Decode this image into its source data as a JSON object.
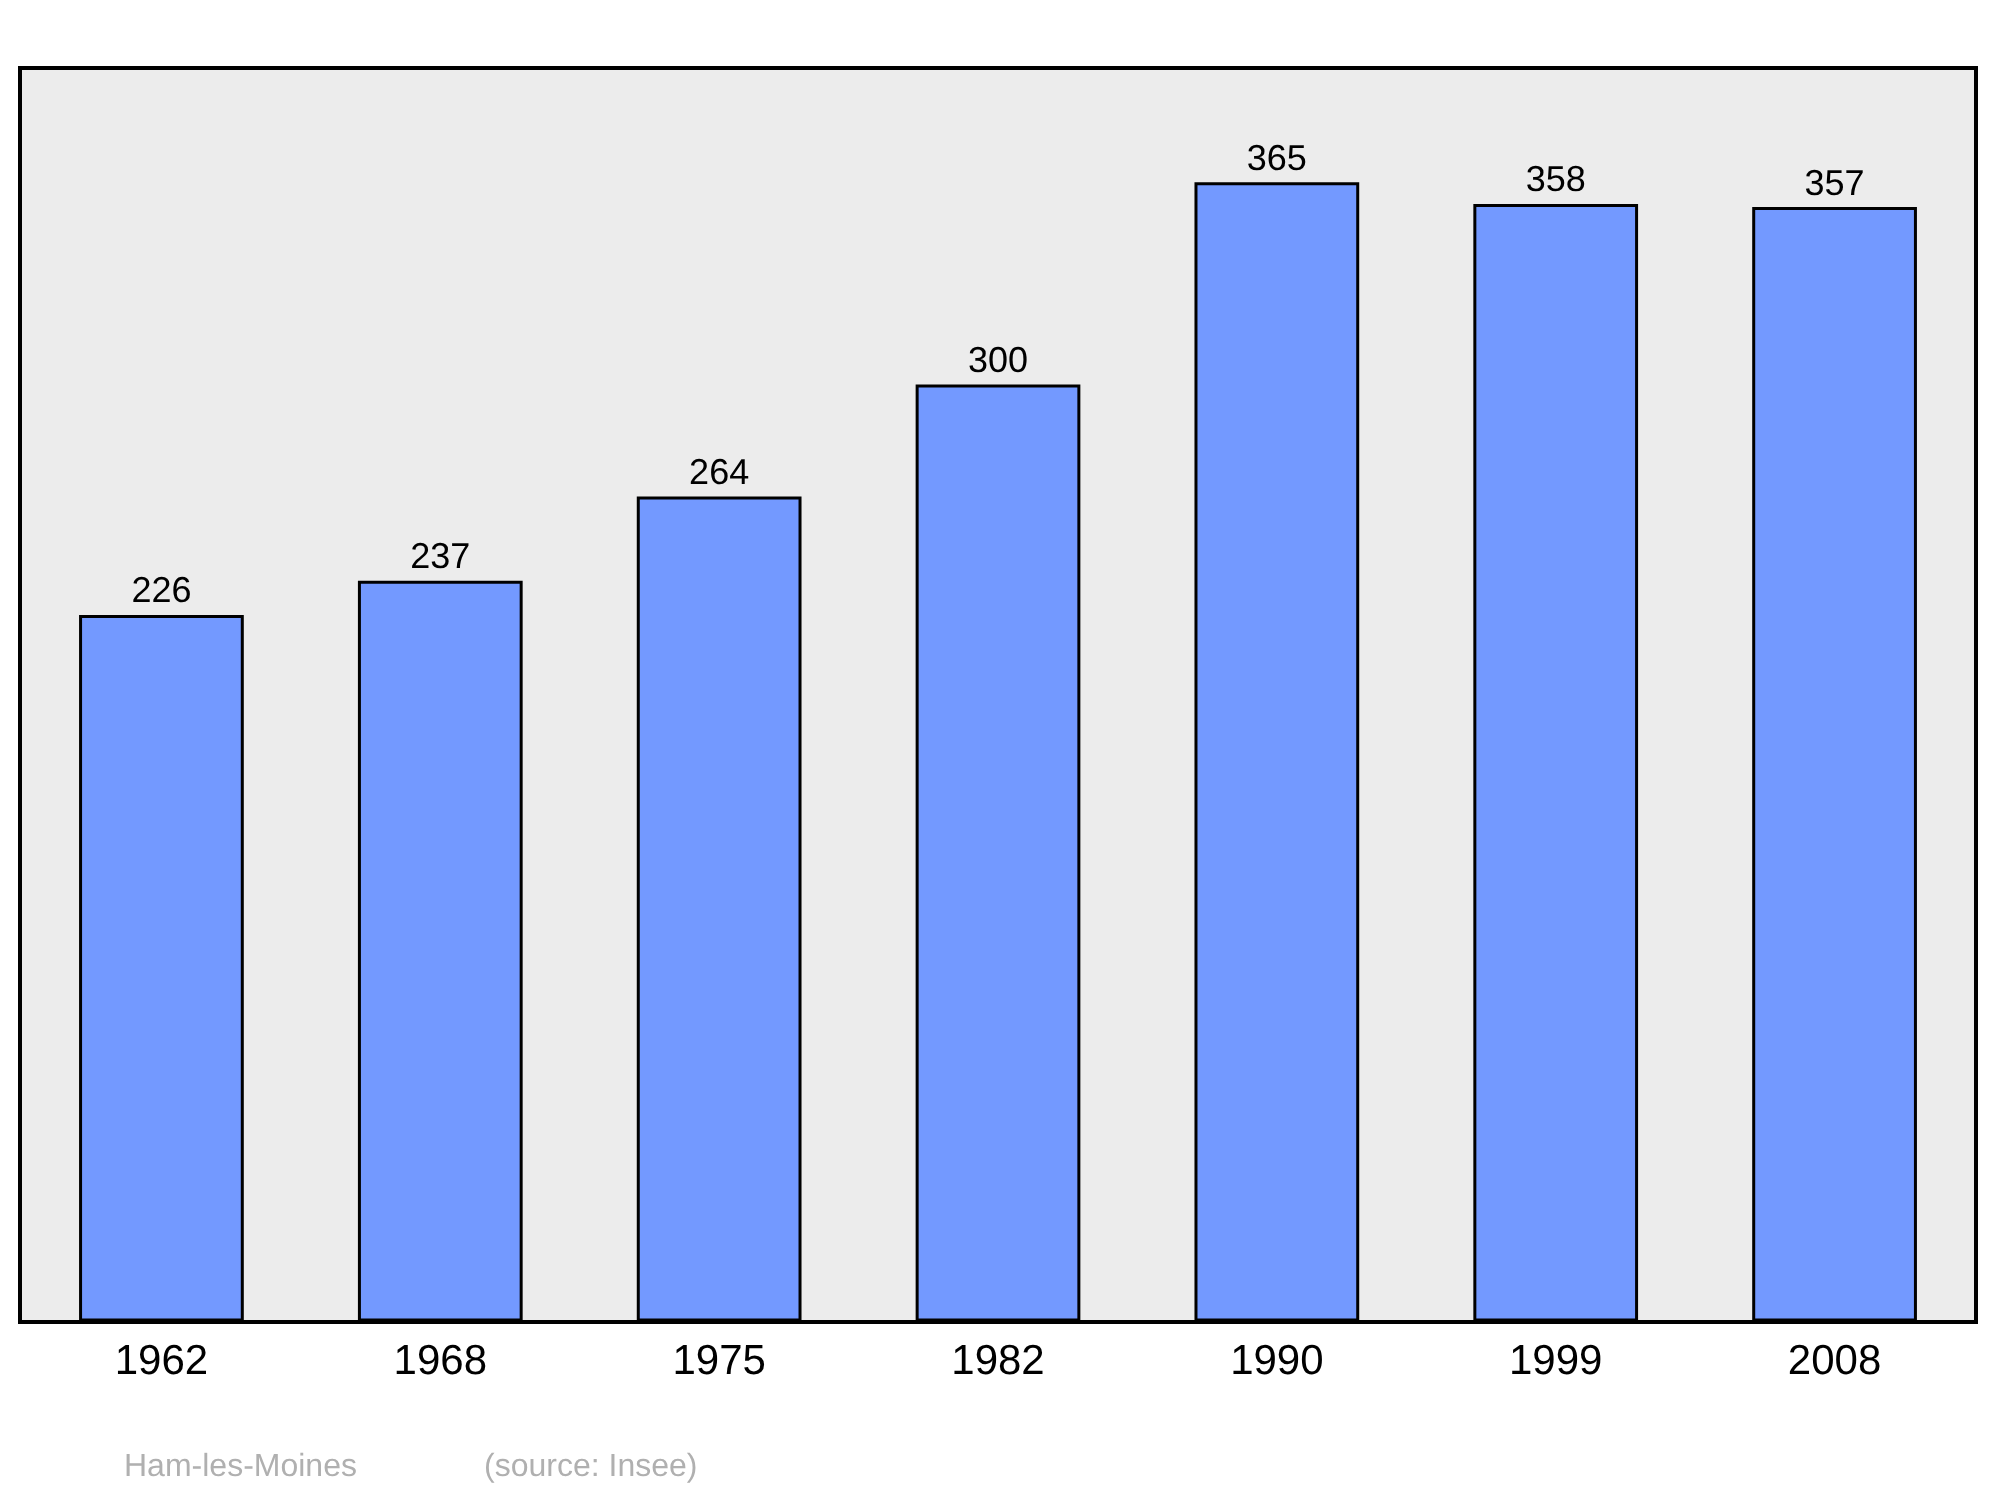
{
  "chart_data": {
    "type": "bar",
    "categories": [
      "1962",
      "1968",
      "1975",
      "1982",
      "1990",
      "1999",
      "2008"
    ],
    "values": [
      226,
      237,
      264,
      300,
      365,
      358,
      357
    ],
    "color": "#7399ff",
    "data_labels": true,
    "grid": false,
    "legend": false,
    "annotations": [
      "Ham-les-Moines",
      "(source: Insee)"
    ]
  }
}
